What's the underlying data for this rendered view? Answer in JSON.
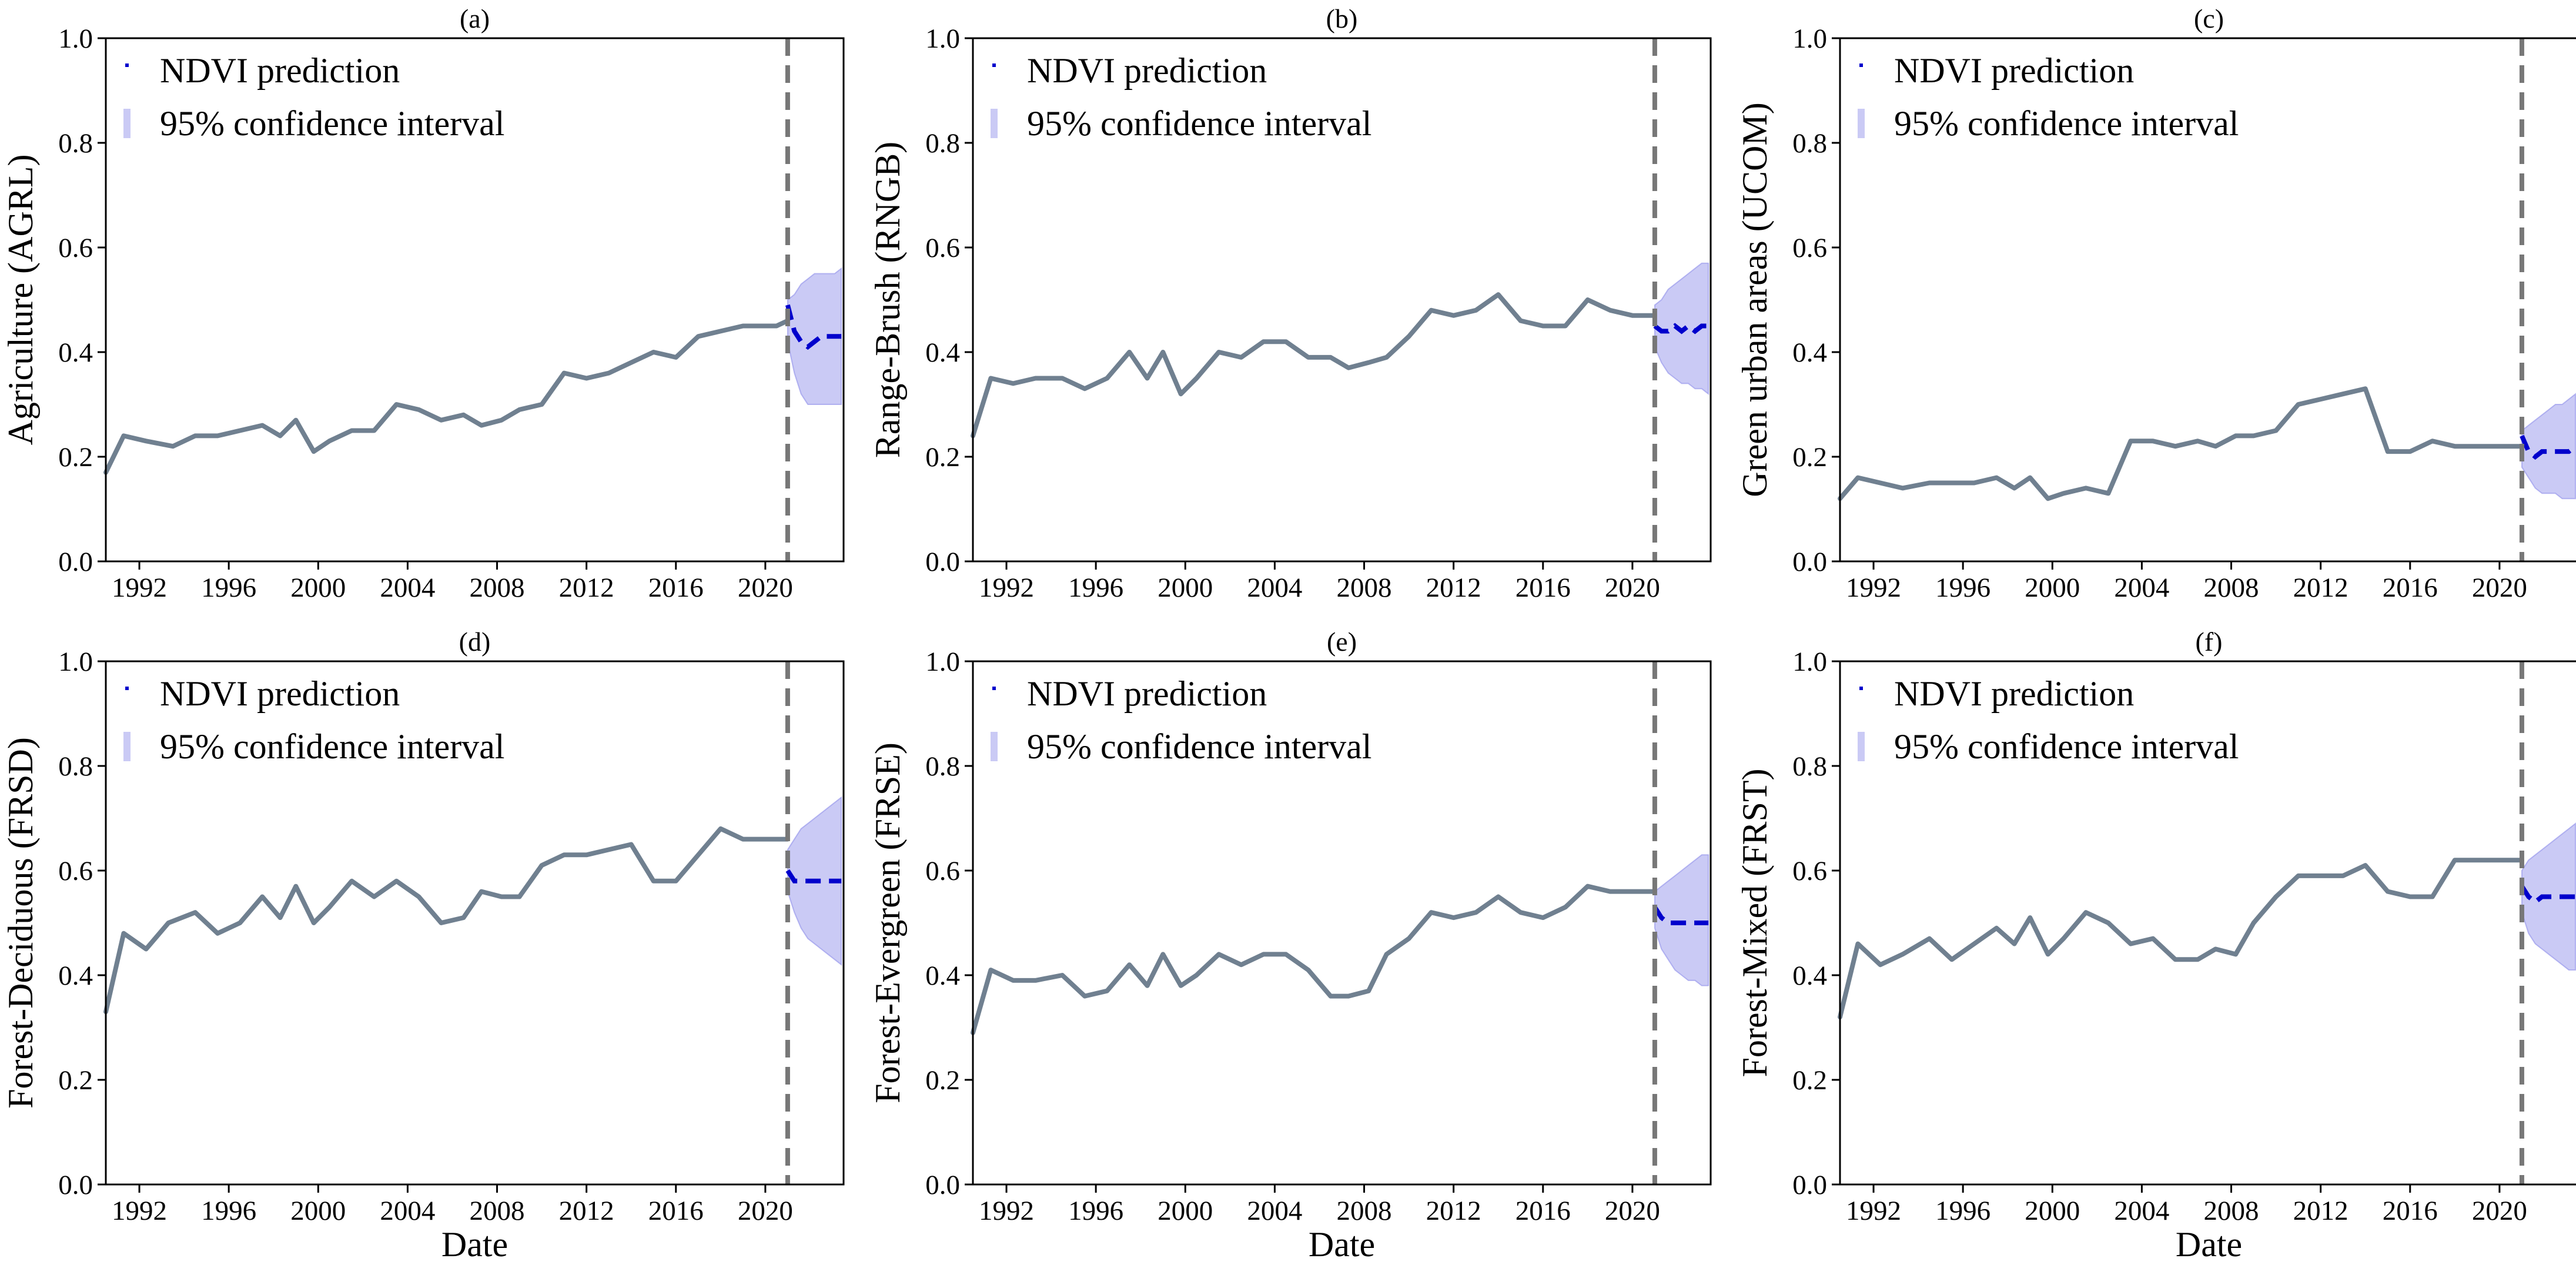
{
  "figure": {
    "colors": {
      "observed": "#708090",
      "prediction": "#0000cc",
      "confidence_band": "#8080e8",
      "cutoff": "#777777",
      "axes": "#000000"
    }
  },
  "chart_data": [
    {
      "type": "line",
      "panel_label": "(a)",
      "ylabel": "Agriculture (AGRL)",
      "xlabel": "",
      "xlim": [
        1990.5,
        2023.5
      ],
      "ylim": [
        0.0,
        1.0
      ],
      "x_ticks": [
        "1992",
        "1996",
        "2000",
        "2004",
        "2008",
        "2012",
        "2016",
        "2020"
      ],
      "y_ticks": [
        "0.0",
        "0.2",
        "0.4",
        "0.6",
        "0.8",
        "1.0"
      ],
      "cutoff_year": 2021.0,
      "legend": [
        "NDVI prediction",
        "95% confidence interval"
      ],
      "legend_position": "upper-left",
      "observed": {
        "x": [
          1990.5,
          1991.3,
          1992.3,
          1993.5,
          1994.5,
          1995.5,
          1996.5,
          1997.5,
          1998.3,
          1999.0,
          1999.8,
          2000.5,
          2001.5,
          2002.5,
          2003.5,
          2004.5,
          2005.5,
          2006.5,
          2007.3,
          2008.2,
          2009.0,
          2010.0,
          2011.0,
          2012.0,
          2013.0,
          2014.0,
          2015.0,
          2016.0,
          2017.0,
          2018.0,
          2019.0,
          2020.0,
          2020.5,
          2021.0
        ],
        "y": [
          0.17,
          0.24,
          0.23,
          0.22,
          0.24,
          0.24,
          0.25,
          0.26,
          0.24,
          0.27,
          0.21,
          0.23,
          0.25,
          0.25,
          0.3,
          0.29,
          0.27,
          0.28,
          0.26,
          0.27,
          0.29,
          0.3,
          0.36,
          0.35,
          0.36,
          0.38,
          0.4,
          0.39,
          0.43,
          0.44,
          0.45,
          0.45,
          0.45,
          0.46
        ]
      },
      "prediction": {
        "x": [
          2021.0,
          2021.3,
          2021.6,
          2021.9,
          2022.2,
          2022.5,
          2022.8,
          2023.1,
          2023.4
        ],
        "y": [
          0.49,
          0.44,
          0.42,
          0.41,
          0.42,
          0.43,
          0.43,
          0.43,
          0.43
        ],
        "lower": [
          0.42,
          0.36,
          0.32,
          0.3,
          0.3,
          0.3,
          0.3,
          0.3,
          0.3
        ],
        "upper": [
          0.5,
          0.51,
          0.53,
          0.54,
          0.55,
          0.55,
          0.55,
          0.55,
          0.56
        ]
      }
    },
    {
      "type": "line",
      "panel_label": "(b)",
      "ylabel": "Range-Brush (RNGB)",
      "xlabel": "",
      "xlim": [
        1990.5,
        2023.5
      ],
      "ylim": [
        0.0,
        1.0
      ],
      "x_ticks": [
        "1992",
        "1996",
        "2000",
        "2004",
        "2008",
        "2012",
        "2016",
        "2020"
      ],
      "y_ticks": [
        "0.0",
        "0.2",
        "0.4",
        "0.6",
        "0.8",
        "1.0"
      ],
      "cutoff_year": 2021.0,
      "legend": [
        "NDVI prediction",
        "95% confidence interval"
      ],
      "legend_position": "upper-left",
      "observed": {
        "x": [
          1990.5,
          1991.3,
          1992.3,
          1993.3,
          1994.5,
          1995.5,
          1996.5,
          1997.5,
          1998.3,
          1999.0,
          1999.8,
          2000.5,
          2001.5,
          2002.5,
          2003.5,
          2004.5,
          2005.5,
          2006.5,
          2007.3,
          2008.2,
          2009.0,
          2010.0,
          2011.0,
          2012.0,
          2013.0,
          2014.0,
          2015.0,
          2016.0,
          2017.0,
          2018.0,
          2019.0,
          2020.0,
          2021.0
        ],
        "y": [
          0.24,
          0.35,
          0.34,
          0.35,
          0.35,
          0.33,
          0.35,
          0.4,
          0.35,
          0.4,
          0.32,
          0.35,
          0.4,
          0.39,
          0.42,
          0.42,
          0.39,
          0.39,
          0.37,
          0.38,
          0.39,
          0.43,
          0.48,
          0.47,
          0.48,
          0.51,
          0.46,
          0.45,
          0.45,
          0.5,
          0.48,
          0.47,
          0.47
        ]
      },
      "prediction": {
        "x": [
          2021.0,
          2021.3,
          2021.6,
          2021.9,
          2022.2,
          2022.5,
          2022.8,
          2023.1,
          2023.4
        ],
        "y": [
          0.45,
          0.44,
          0.44,
          0.45,
          0.44,
          0.45,
          0.44,
          0.45,
          0.45
        ],
        "lower": [
          0.41,
          0.38,
          0.36,
          0.35,
          0.34,
          0.34,
          0.33,
          0.33,
          0.32
        ],
        "upper": [
          0.49,
          0.5,
          0.52,
          0.53,
          0.54,
          0.55,
          0.56,
          0.57,
          0.57
        ]
      }
    },
    {
      "type": "line",
      "panel_label": "(c)",
      "ylabel": "Green urban areas (UCOM)",
      "xlabel": "",
      "xlim": [
        1990.5,
        2023.5
      ],
      "ylim": [
        0.0,
        1.0
      ],
      "x_ticks": [
        "1992",
        "1996",
        "2000",
        "2004",
        "2008",
        "2012",
        "2016",
        "2020"
      ],
      "y_ticks": [
        "0.0",
        "0.2",
        "0.4",
        "0.6",
        "0.8",
        "1.0"
      ],
      "cutoff_year": 2021.0,
      "legend": [
        "NDVI prediction",
        "95% confidence interval"
      ],
      "legend_position": "upper-left",
      "observed": {
        "x": [
          1990.5,
          1991.3,
          1992.3,
          1993.3,
          1994.5,
          1995.5,
          1996.5,
          1997.5,
          1998.3,
          1999.0,
          1999.8,
          2000.5,
          2001.5,
          2002.5,
          2003.5,
          2004.5,
          2005.5,
          2006.5,
          2007.3,
          2008.2,
          2009.0,
          2010.0,
          2011.0,
          2012.0,
          2013.0,
          2014.0,
          2015.0,
          2016.0,
          2017.0,
          2018.0,
          2019.0,
          2020.0,
          2021.0
        ],
        "y": [
          0.12,
          0.16,
          0.15,
          0.14,
          0.15,
          0.15,
          0.15,
          0.16,
          0.14,
          0.16,
          0.12,
          0.13,
          0.14,
          0.13,
          0.23,
          0.23,
          0.22,
          0.23,
          0.22,
          0.24,
          0.24,
          0.25,
          0.3,
          0.31,
          0.32,
          0.33,
          0.21,
          0.21,
          0.23,
          0.22,
          0.22,
          0.22,
          0.22
        ]
      },
      "prediction": {
        "x": [
          2021.0,
          2021.3,
          2021.6,
          2021.9,
          2022.2,
          2022.5,
          2022.8,
          2023.1,
          2023.4
        ],
        "y": [
          0.24,
          0.21,
          0.2,
          0.21,
          0.21,
          0.21,
          0.21,
          0.21,
          0.22
        ],
        "lower": [
          0.18,
          0.16,
          0.14,
          0.13,
          0.13,
          0.13,
          0.12,
          0.12,
          0.12
        ],
        "upper": [
          0.25,
          0.26,
          0.27,
          0.28,
          0.29,
          0.3,
          0.3,
          0.31,
          0.32
        ]
      }
    },
    {
      "type": "line",
      "panel_label": "(d)",
      "ylabel": "Forest-Deciduous (FRSD)",
      "xlabel": "Date",
      "xlim": [
        1990.5,
        2023.5
      ],
      "ylim": [
        0.0,
        1.0
      ],
      "x_ticks": [
        "1992",
        "1996",
        "2000",
        "2004",
        "2008",
        "2012",
        "2016",
        "2020"
      ],
      "y_ticks": [
        "0.0",
        "0.2",
        "0.4",
        "0.6",
        "0.8",
        "1.0"
      ],
      "cutoff_year": 2021.0,
      "legend": [
        "NDVI prediction",
        "95% confidence interval"
      ],
      "legend_position": "upper-left",
      "observed": {
        "x": [
          1990.5,
          1991.3,
          1992.3,
          1993.3,
          1994.5,
          1995.5,
          1996.5,
          1997.5,
          1998.3,
          1999.0,
          1999.8,
          2000.5,
          2001.5,
          2002.5,
          2003.5,
          2004.5,
          2005.5,
          2006.5,
          2007.3,
          2008.2,
          2009.0,
          2010.0,
          2011.0,
          2012.0,
          2013.0,
          2014.0,
          2015.0,
          2016.0,
          2017.0,
          2018.0,
          2019.0,
          2020.0,
          2021.0
        ],
        "y": [
          0.33,
          0.48,
          0.45,
          0.5,
          0.52,
          0.48,
          0.5,
          0.55,
          0.51,
          0.57,
          0.5,
          0.53,
          0.58,
          0.55,
          0.58,
          0.55,
          0.5,
          0.51,
          0.56,
          0.55,
          0.55,
          0.61,
          0.63,
          0.63,
          0.64,
          0.65,
          0.58,
          0.58,
          0.63,
          0.68,
          0.66,
          0.66,
          0.66
        ]
      },
      "prediction": {
        "x": [
          2021.0,
          2021.3,
          2021.6,
          2021.9,
          2022.2,
          2022.5,
          2022.8,
          2023.1,
          2023.4
        ],
        "y": [
          0.6,
          0.58,
          0.58,
          0.58,
          0.58,
          0.58,
          0.58,
          0.58,
          0.58
        ],
        "lower": [
          0.56,
          0.52,
          0.49,
          0.47,
          0.46,
          0.45,
          0.44,
          0.43,
          0.42
        ],
        "upper": [
          0.64,
          0.66,
          0.68,
          0.69,
          0.7,
          0.71,
          0.72,
          0.73,
          0.74
        ]
      }
    },
    {
      "type": "line",
      "panel_label": "(e)",
      "ylabel": "Forest-Evergreen (FRSE)",
      "xlabel": "Date",
      "xlim": [
        1990.5,
        2023.5
      ],
      "ylim": [
        0.0,
        1.0
      ],
      "x_ticks": [
        "1992",
        "1996",
        "2000",
        "2004",
        "2008",
        "2012",
        "2016",
        "2020"
      ],
      "y_ticks": [
        "0.0",
        "0.2",
        "0.4",
        "0.6",
        "0.8",
        "1.0"
      ],
      "cutoff_year": 2021.0,
      "legend": [
        "NDVI prediction",
        "95% confidence interval"
      ],
      "legend_position": "upper-left",
      "observed": {
        "x": [
          1990.5,
          1991.3,
          1992.3,
          1993.3,
          1994.5,
          1995.5,
          1996.5,
          1997.5,
          1998.3,
          1999.0,
          1999.8,
          2000.5,
          2001.5,
          2002.5,
          2003.5,
          2004.5,
          2005.5,
          2006.5,
          2007.3,
          2008.2,
          2009.0,
          2010.0,
          2011.0,
          2012.0,
          2013.0,
          2014.0,
          2015.0,
          2016.0,
          2017.0,
          2018.0,
          2019.0,
          2020.0,
          2021.0
        ],
        "y": [
          0.29,
          0.41,
          0.39,
          0.39,
          0.4,
          0.36,
          0.37,
          0.42,
          0.38,
          0.44,
          0.38,
          0.4,
          0.44,
          0.42,
          0.44,
          0.44,
          0.41,
          0.36,
          0.36,
          0.37,
          0.44,
          0.47,
          0.52,
          0.51,
          0.52,
          0.55,
          0.52,
          0.51,
          0.53,
          0.57,
          0.56,
          0.56,
          0.56
        ]
      },
      "prediction": {
        "x": [
          2021.0,
          2021.3,
          2021.6,
          2021.9,
          2022.2,
          2022.5,
          2022.8,
          2023.1,
          2023.4
        ],
        "y": [
          0.53,
          0.51,
          0.5,
          0.5,
          0.5,
          0.5,
          0.5,
          0.5,
          0.5
        ],
        "lower": [
          0.49,
          0.45,
          0.43,
          0.41,
          0.4,
          0.39,
          0.39,
          0.38,
          0.38
        ],
        "upper": [
          0.56,
          0.57,
          0.58,
          0.59,
          0.6,
          0.61,
          0.62,
          0.63,
          0.63
        ]
      }
    },
    {
      "type": "line",
      "panel_label": "(f)",
      "ylabel": "Forest-Mixed (FRST)",
      "xlabel": "Date",
      "xlim": [
        1990.5,
        2023.5
      ],
      "ylim": [
        0.0,
        1.0
      ],
      "x_ticks": [
        "1992",
        "1996",
        "2000",
        "2004",
        "2008",
        "2012",
        "2016",
        "2020"
      ],
      "y_ticks": [
        "0.0",
        "0.2",
        "0.4",
        "0.6",
        "0.8",
        "1.0"
      ],
      "cutoff_year": 2021.0,
      "legend": [
        "NDVI prediction",
        "95% confidence interval"
      ],
      "legend_position": "upper-left",
      "observed": {
        "x": [
          1990.5,
          1991.3,
          1992.3,
          1993.3,
          1994.5,
          1995.5,
          1996.5,
          1997.5,
          1998.3,
          1999.0,
          1999.8,
          2000.5,
          2001.5,
          2002.5,
          2003.5,
          2004.5,
          2005.5,
          2006.5,
          2007.3,
          2008.2,
          2009.0,
          2010.0,
          2011.0,
          2012.0,
          2013.0,
          2014.0,
          2015.0,
          2016.0,
          2017.0,
          2018.0,
          2019.0,
          2020.0,
          2021.0
        ],
        "y": [
          0.32,
          0.46,
          0.42,
          0.44,
          0.47,
          0.43,
          0.46,
          0.49,
          0.46,
          0.51,
          0.44,
          0.47,
          0.52,
          0.5,
          0.46,
          0.47,
          0.43,
          0.43,
          0.45,
          0.44,
          0.5,
          0.55,
          0.59,
          0.59,
          0.59,
          0.61,
          0.56,
          0.55,
          0.55,
          0.62,
          0.62,
          0.62,
          0.62
        ]
      },
      "prediction": {
        "x": [
          2021.0,
          2021.3,
          2021.6,
          2021.9,
          2022.2,
          2022.5,
          2022.8,
          2023.1,
          2023.4
        ],
        "y": [
          0.57,
          0.55,
          0.54,
          0.55,
          0.55,
          0.55,
          0.55,
          0.55,
          0.55
        ],
        "lower": [
          0.52,
          0.48,
          0.46,
          0.45,
          0.44,
          0.43,
          0.42,
          0.41,
          0.41
        ],
        "upper": [
          0.6,
          0.62,
          0.63,
          0.64,
          0.65,
          0.66,
          0.67,
          0.68,
          0.69
        ]
      }
    }
  ]
}
